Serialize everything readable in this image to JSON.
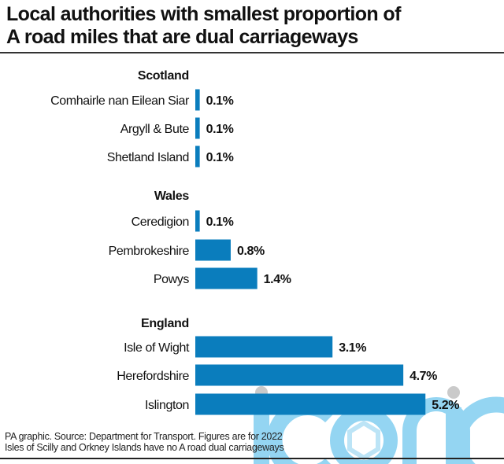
{
  "title_lines": [
    "Local authorities with smallest proportion of",
    "A road miles that are dual carriageways"
  ],
  "footer": {
    "source": "PA graphic. Source: Department for Transport. Figures are for 2022",
    "note": "Isles of Scilly and Orkney Islands have no A road dual carriageways"
  },
  "watermark": "iconic",
  "colors": {
    "bar": "#0a7dbd",
    "watermark": "#8fd3f2",
    "watermark_dot": "#c8c8c8",
    "text": "#111111"
  },
  "chart_data": {
    "type": "bar",
    "orientation": "horizontal",
    "title": "Local authorities with smallest proportion of A road miles that are dual carriageways",
    "xlabel": "",
    "ylabel": "",
    "unit": "%",
    "xlim": [
      0,
      5.2
    ],
    "grid": false,
    "groups": [
      {
        "name": "Scotland",
        "categories": [
          "Comhairle nan Eilean Siar",
          "Argyll & Bute",
          "Shetland Island"
        ],
        "values": [
          0.1,
          0.1,
          0.1
        ],
        "labels": [
          "0.1%",
          "0.1%",
          "0.1%"
        ]
      },
      {
        "name": "Wales",
        "categories": [
          "Ceredigion",
          "Pembrokeshire",
          "Powys"
        ],
        "values": [
          0.1,
          0.8,
          1.4
        ],
        "labels": [
          "0.1%",
          "0.8%",
          "1.4%"
        ]
      },
      {
        "name": "England",
        "categories": [
          "Isle of Wight",
          "Herefordshire",
          "Islington"
        ],
        "values": [
          3.1,
          4.7,
          5.2
        ],
        "labels": [
          "3.1%",
          "4.7%",
          "5.2%"
        ]
      }
    ]
  }
}
